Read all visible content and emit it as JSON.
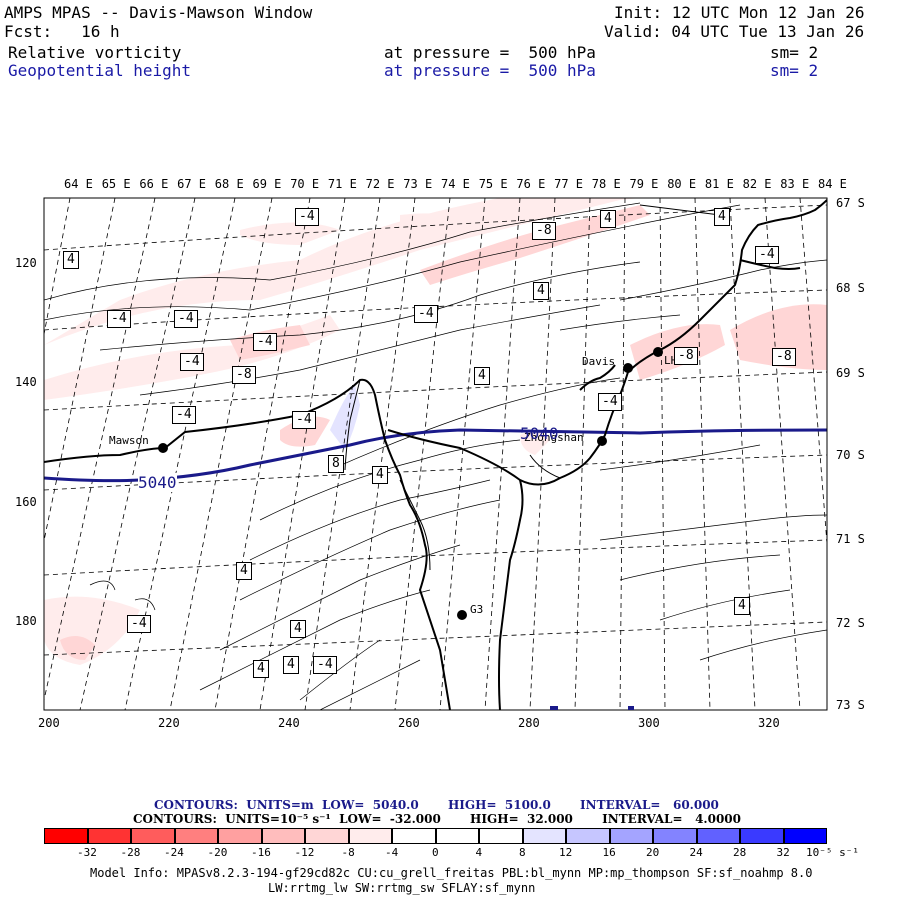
{
  "header": {
    "title": "AMPS MPAS -- Davis-Mawson Window",
    "init": "Init: 12 UTC Mon 12 Jan 26",
    "fcst": "Fcst:   16 h",
    "valid": "Valid: 04 UTC Tue 13 Jan 26",
    "field1": {
      "name": "Relative vorticity",
      "level": "at pressure =  500 hPa",
      "smooth": "sm= 2"
    },
    "field2": {
      "name": "Geopotential height",
      "level": "at pressure =  500 hPa",
      "smooth": "sm= 2"
    }
  },
  "map": {
    "longitudes": [
      "64 E",
      "65 E",
      "66 E",
      "67 E",
      "68 E",
      "69 E",
      "70 E",
      "71 E",
      "72 E",
      "73 E",
      "74 E",
      "75 E",
      "76 E",
      "77 E",
      "78 E",
      "79 E",
      "80 E",
      "81 E",
      "82 E",
      "83 E",
      "84 E"
    ],
    "latitudes": [
      "67 S",
      "68 S",
      "69 S",
      "70 S",
      "71 S",
      "72 S",
      "73 S"
    ],
    "x_ticks": [
      "200",
      "220",
      "240",
      "260",
      "280",
      "300",
      "320"
    ],
    "y_ticks": [
      "120",
      "140",
      "160",
      "180"
    ],
    "stations": [
      "Mawson",
      "Davis",
      "Zhongshan",
      "G3",
      "LHF"
    ],
    "height_contour_label": "5040",
    "vorticity_labels": [
      "-4",
      "4",
      "-8",
      "8"
    ]
  },
  "legend": {
    "contours_height": "CONTOURS:  UNITS=m  LOW=  5040.0       HIGH=  5100.0       INTERVAL=   60.000",
    "contours_vort": "CONTOURS:  UNITS=10⁻⁵ s⁻¹  LOW=  -32.000       HIGH=  32.000       INTERVAL=   4.0000",
    "colorbar_ticks": [
      "-32",
      "-28",
      "-24",
      "-20",
      "-16",
      "-12",
      "-8",
      "-4",
      "0",
      "4",
      "8",
      "12",
      "16",
      "20",
      "24",
      "28",
      "32"
    ],
    "colorbar_units": "10⁻⁵ s⁻¹",
    "colors": [
      "#ff0000",
      "#ff3333",
      "#ff5c5c",
      "#ff7f7f",
      "#ffa0a0",
      "#ffbdbd",
      "#ffd6d6",
      "#ffecec",
      "#ffffff",
      "#ffffff",
      "#e4e4ff",
      "#c6c6ff",
      "#a4a4ff",
      "#8383ff",
      "#6161ff",
      "#3a3aff",
      "#0000ff"
    ]
  },
  "model_info": {
    "line1": "Model Info: MPASv8.2.3-194-gf29cd82c CU:cu_grell_freitas PBL:bl_mynn MP:mp_thompson SF:sf_noahmp 8.0",
    "line2": "LW:rrtmg_lw SW:rrtmg_sw SFLAY:sf_mynn"
  }
}
